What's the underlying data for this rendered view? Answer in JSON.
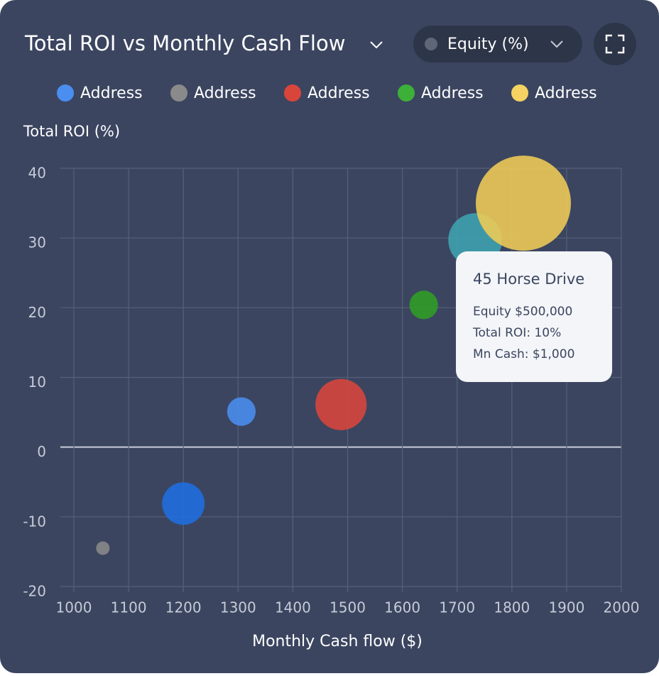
{
  "chart_data": {
    "type": "bubble",
    "title": "Total ROI vs Monthly Cash Flow",
    "dropdown": "Equity (%)",
    "y_label": "Total ROI (%)",
    "x_label": "Monthly Cash flow ($)",
    "xlim": [
      1000,
      2000
    ],
    "xticks": [
      1000,
      1100,
      1200,
      1300,
      1400,
      1500,
      1600,
      1700,
      1800,
      1900,
      2000
    ],
    "ylim": [
      -20,
      40
    ],
    "yticks": [
      -20,
      -10,
      0,
      10,
      20,
      30,
      40
    ],
    "grid": true,
    "series": [
      {
        "name": "Address",
        "color": "#4a8ef0",
        "x": [
          1200,
          1306,
          1733
        ],
        "values": [
          -8.1,
          5.1,
          29.7
        ],
        "sizes": [
          20,
          9,
          32
        ],
        "colors": [
          "#1f6ee0",
          "#4a8ef0",
          "#3fa3b0"
        ]
      },
      {
        "name": "Address",
        "color": "#8a8a8a",
        "x": [
          1053
        ],
        "values": [
          -14.5
        ],
        "sizes": [
          2
        ],
        "colors": [
          "#8a8a8a"
        ]
      },
      {
        "name": "Address",
        "color": "#d9453b",
        "x": [
          1488
        ],
        "values": [
          6.1
        ],
        "sizes": [
          29
        ],
        "colors": [
          "#d9453b"
        ]
      },
      {
        "name": "Address",
        "color": "#3db03a",
        "x": [
          1639
        ],
        "values": [
          20.4
        ],
        "sizes": [
          9
        ],
        "colors": [
          "#2f9e24"
        ]
      },
      {
        "name": "Address",
        "color": "#f5d261",
        "x": [
          1821
        ],
        "values": [
          35.0
        ],
        "sizes": [
          100
        ],
        "colors": [
          "#f0cc55"
        ]
      }
    ],
    "tooltip": {
      "title": "45 Horse Drive",
      "lines": [
        "Equity $500,000",
        "Total ROI: 10%",
        "Mn Cash: $1,000"
      ]
    }
  }
}
